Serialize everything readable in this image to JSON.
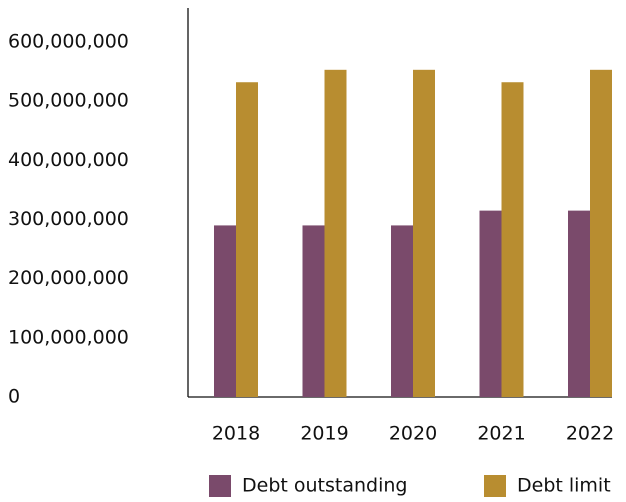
{
  "chart_data": {
    "type": "bar",
    "title": "",
    "xlabel": "",
    "ylabel": "",
    "categories": [
      "2018",
      "2019",
      "2020",
      "2021",
      "2022"
    ],
    "ylim": [
      0,
      600000000
    ],
    "y_ticks": [
      0,
      100000000,
      200000000,
      300000000,
      400000000,
      500000000,
      600000000
    ],
    "y_tick_labels": [
      "0",
      "100,000,000",
      "200,000,000",
      "300,000,000",
      "400,000,000",
      "500,000,000",
      "600,000,000"
    ],
    "grid": false,
    "legend_position": "bottom",
    "series": [
      {
        "name": "Debt outstanding",
        "color": "#7a4a6b",
        "values": [
          290000000,
          290000000,
          290000000,
          315000000,
          315000000
        ]
      },
      {
        "name": "Debt limit",
        "color": "#b88d30",
        "values": [
          532000000,
          553000000,
          553000000,
          532000000,
          553000000
        ]
      }
    ]
  }
}
